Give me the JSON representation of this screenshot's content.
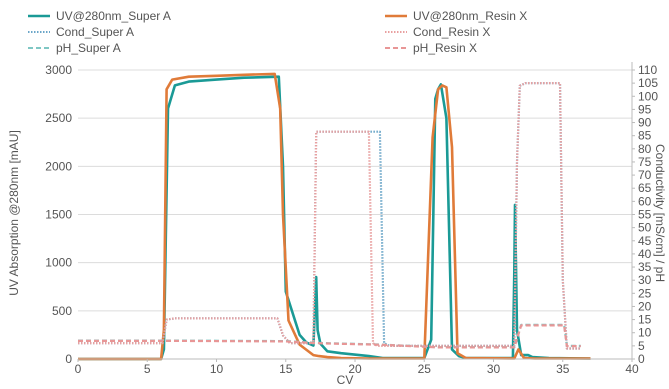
{
  "chart_data": {
    "type": "line",
    "xlabel": "CV",
    "ylabel": "UV Absorption @280nm [mAU]",
    "y2label": "Conductivity [mS/cm] / pH",
    "xlim": [
      0,
      40
    ],
    "ylim": [
      0,
      3000
    ],
    "y2lim": [
      0,
      110
    ],
    "x_ticks": [
      0,
      5,
      10,
      15,
      20,
      25,
      30,
      35,
      40
    ],
    "y_ticks": [
      0,
      500,
      1000,
      1500,
      2000,
      2500,
      3000
    ],
    "y2_ticks": [
      0,
      5,
      10,
      15,
      20,
      25,
      30,
      35,
      40,
      45,
      50,
      55,
      60,
      65,
      70,
      75,
      80,
      85,
      90,
      95,
      100,
      105,
      110
    ],
    "grid": "horizontal",
    "legend_position": "top",
    "series": [
      {
        "name": "UV@280nm_Super A",
        "axis": "left",
        "color": "#1a9a96",
        "style": "solid",
        "x": [
          0,
          6,
          6.2,
          6.5,
          7,
          8,
          10,
          12,
          14.5,
          14.8,
          15,
          16,
          16.5,
          17,
          17.2,
          17.3,
          17.5,
          18,
          19,
          21,
          22,
          25,
          25.5,
          25.8,
          26,
          26.2,
          26.6,
          27,
          27.5,
          28,
          31.4,
          31.5,
          31.55,
          31.7,
          32,
          32.5,
          32.8,
          34,
          37
        ],
        "y": [
          0,
          0,
          100,
          2600,
          2840,
          2880,
          2900,
          2920,
          2930,
          2000,
          700,
          250,
          170,
          140,
          850,
          300,
          160,
          80,
          60,
          30,
          10,
          10,
          200,
          2700,
          2800,
          2850,
          2500,
          100,
          30,
          10,
          10,
          900,
          1600,
          300,
          40,
          40,
          20,
          10,
          5
        ]
      },
      {
        "name": "UV@280nm_Resin X",
        "axis": "left",
        "color": "#e07b39",
        "style": "solid",
        "x": [
          0,
          6,
          6.2,
          6.4,
          6.8,
          8,
          10,
          12,
          14.2,
          14.6,
          14.8,
          15.2,
          16,
          17,
          17.4,
          18,
          19,
          21,
          22,
          25,
          25.6,
          26,
          26.3,
          26.6,
          27,
          27.4,
          28,
          31.5,
          31.8,
          32.2,
          33,
          34,
          37
        ],
        "y": [
          0,
          0,
          300,
          2800,
          2900,
          2930,
          2940,
          2950,
          2960,
          2600,
          1500,
          400,
          150,
          40,
          30,
          20,
          10,
          5,
          5,
          5,
          2300,
          2800,
          2840,
          2820,
          2200,
          60,
          10,
          5,
          100,
          10,
          5,
          5,
          5
        ]
      },
      {
        "name": "Cond_Super A",
        "axis": "right",
        "color": "#6ba6c8",
        "style": "dotted",
        "x": [
          0,
          6.1,
          6.4,
          7,
          14.4,
          14.8,
          15.3,
          17.0,
          17.2,
          17.4,
          21.8,
          22.1,
          22.5,
          31.5,
          31.7,
          31.9,
          32.3,
          32.6,
          34.8,
          35.0,
          35.3,
          36.3
        ],
        "y": [
          6,
          6,
          15,
          15.5,
          15.5,
          9,
          6,
          6,
          86.5,
          86.5,
          86.5,
          6,
          5,
          5,
          75,
          104,
          105,
          105,
          105,
          30,
          4,
          4
        ]
      },
      {
        "name": "Cond_Resin X",
        "axis": "right",
        "color": "#e8a0a0",
        "style": "dotted",
        "x": [
          0,
          6.1,
          6.4,
          7,
          14.4,
          14.8,
          15.3,
          17.0,
          17.2,
          17.4,
          21.0,
          21.3,
          21.6,
          31.5,
          31.7,
          31.9,
          32.3,
          32.6,
          34.8,
          35.0,
          35.3,
          36.3
        ],
        "y": [
          6,
          6,
          15,
          15.5,
          15.5,
          9,
          6,
          6,
          86.5,
          86.5,
          86.5,
          6,
          5,
          5,
          75,
          104,
          105,
          105,
          105,
          30,
          4,
          4
        ]
      },
      {
        "name": "pH_Super A",
        "axis": "right",
        "color": "#7fc7c4",
        "style": "dashed",
        "x": [
          0,
          6.5,
          7,
          15,
          16,
          17,
          18,
          22,
          24,
          26,
          31.5,
          32,
          35.1,
          35.3,
          36.3
        ],
        "y": [
          7,
          7,
          7,
          6.8,
          6.5,
          6.2,
          6,
          5.5,
          5,
          4.5,
          4.5,
          13,
          13,
          5,
          5
        ]
      },
      {
        "name": "pH_Resin X",
        "axis": "right",
        "color": "#e89696",
        "style": "dashed",
        "x": [
          0,
          6.5,
          7,
          15,
          16,
          17,
          18,
          22,
          24,
          26,
          31.5,
          32,
          35.1,
          35.3,
          36.3
        ],
        "y": [
          6.9,
          6.9,
          6.9,
          6.7,
          6.4,
          6.1,
          5.9,
          5.4,
          4.9,
          4.4,
          4.4,
          12.8,
          12.8,
          4.9,
          4.9
        ]
      }
    ]
  }
}
